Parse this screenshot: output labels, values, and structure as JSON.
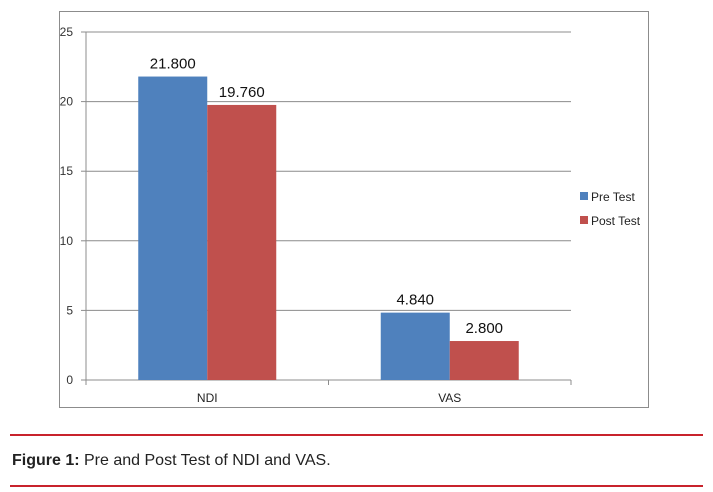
{
  "chart_data": {
    "type": "bar",
    "categories": [
      "NDI",
      "VAS"
    ],
    "series": [
      {
        "name": "Pre Test",
        "values": [
          21.8,
          4.84
        ],
        "labels": [
          "21.800",
          "4.840"
        ],
        "color": "#4f81bd"
      },
      {
        "name": "Post Test",
        "values": [
          19.76,
          2.8
        ],
        "labels": [
          "19.760",
          "2.800"
        ],
        "color": "#c0504d"
      }
    ],
    "ylim": [
      0,
      25
    ],
    "yticks": [
      0,
      5,
      10,
      15,
      20,
      25
    ],
    "grid": true,
    "legend": "right"
  },
  "caption": {
    "label": "Figure 1:",
    "text": " Pre and Post Test of NDI and VAS."
  }
}
